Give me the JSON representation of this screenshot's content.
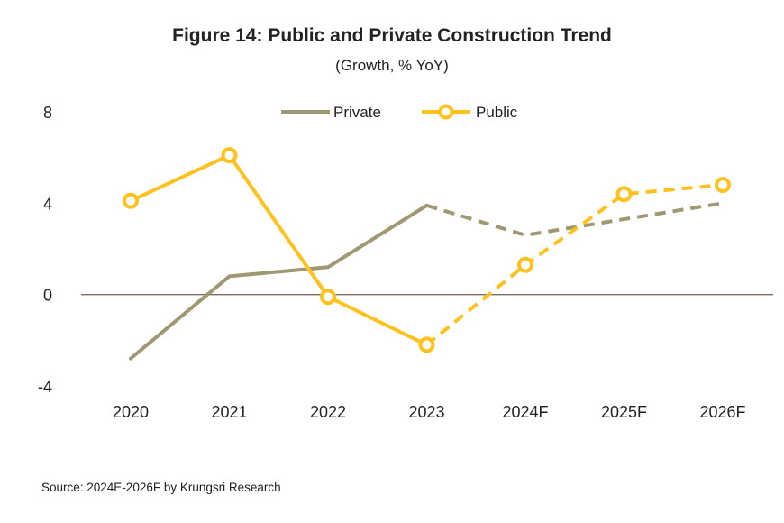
{
  "figure": {
    "title": "Figure 14: Public and Private Construction Trend",
    "subtitle": "(Growth, % YoY)",
    "source": "Source: 2024E-2026F by Krungsri Research"
  },
  "chart_data": {
    "type": "line",
    "title": "Figure 14: Public and Private Construction Trend",
    "subtitle": "(Growth, % YoY)",
    "xlabel": "",
    "ylabel": "",
    "categories": [
      "2020",
      "2021",
      "2022",
      "2023",
      "2024F",
      "2025F",
      "2026F"
    ],
    "ylim": [
      -4,
      8
    ],
    "yticks": [
      -4,
      0,
      4,
      8
    ],
    "grid": false,
    "legend": "top-center",
    "forecast_start_index": 3,
    "series": [
      {
        "name": "Private",
        "color": "#a09873",
        "marker": "none",
        "values": [
          -2.8,
          0.8,
          1.2,
          3.9,
          2.6,
          3.3,
          4.0
        ]
      },
      {
        "name": "Public",
        "color": "#ffc11e",
        "marker": "circle",
        "values": [
          4.1,
          6.1,
          -0.1,
          -2.2,
          1.3,
          4.4,
          4.8
        ]
      }
    ],
    "zero_line_color": "#7a6a60"
  }
}
